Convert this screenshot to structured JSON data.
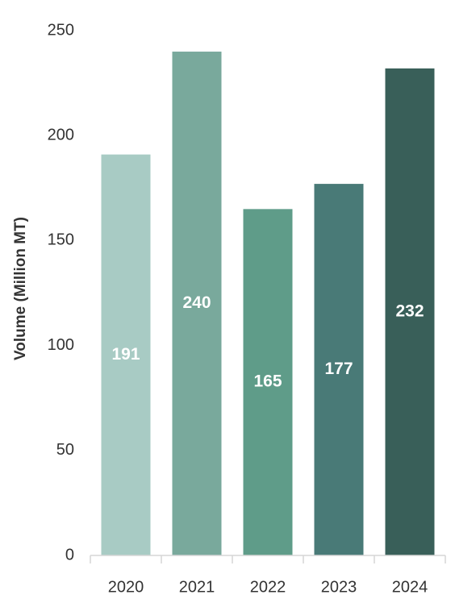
{
  "chart_data": {
    "type": "bar",
    "categories": [
      "2020",
      "2021",
      "2022",
      "2023",
      "2024"
    ],
    "values": [
      191,
      240,
      165,
      177,
      232
    ],
    "data_labels": [
      "191",
      "240",
      "165",
      "177",
      "232"
    ],
    "ylabel": "Volume (Million MT)",
    "ylim": [
      0,
      250
    ],
    "yticks": [
      "0",
      "50",
      "100",
      "150",
      "200",
      "250"
    ],
    "ytick_values": [
      0,
      50,
      100,
      150,
      200,
      250
    ],
    "grid": false,
    "legend": "none",
    "colors": [
      "#a8cbc4",
      "#79a99c",
      "#5f9c89",
      "#497a77",
      "#395f59"
    ]
  }
}
